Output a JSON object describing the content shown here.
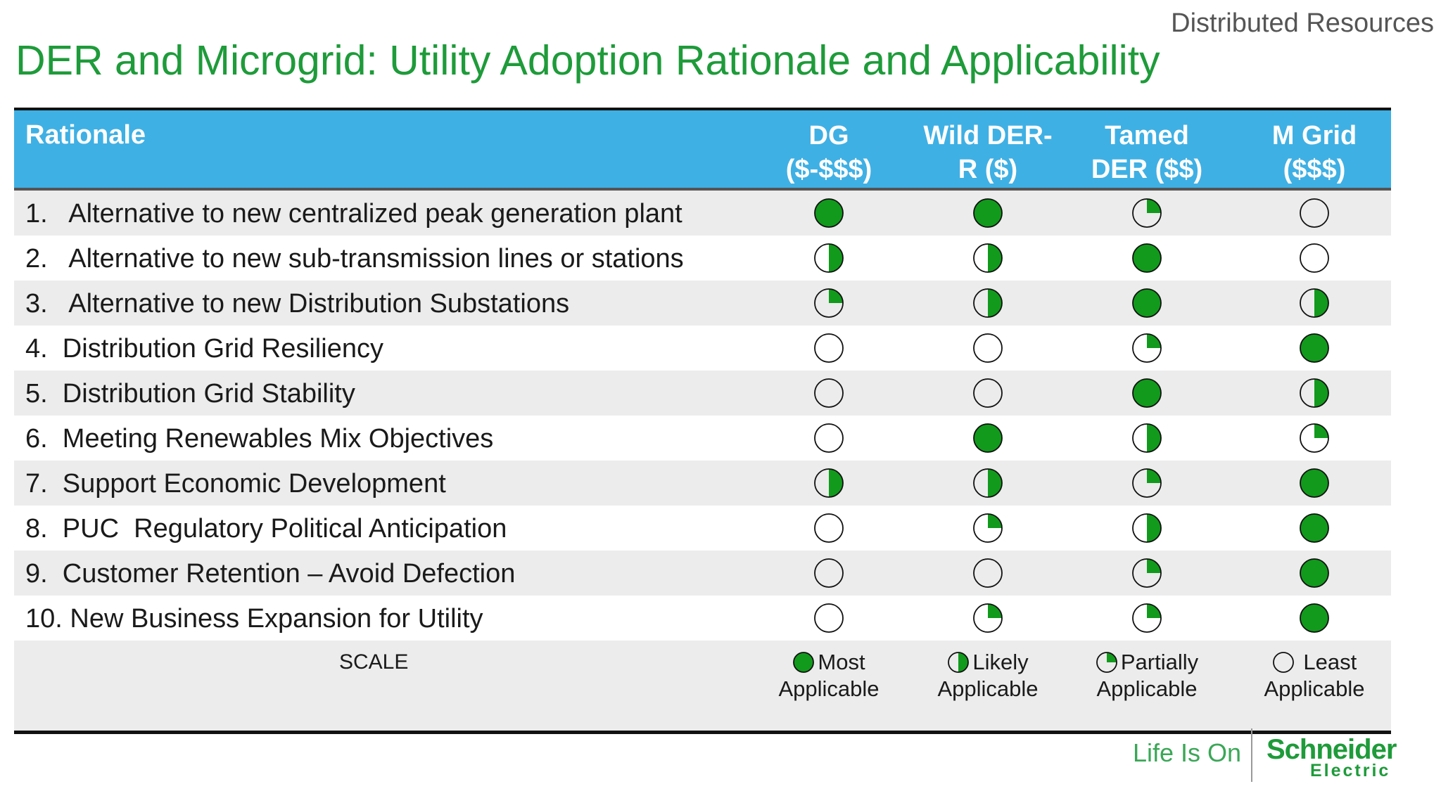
{
  "header": {
    "section": "Distributed Resources"
  },
  "title": "DER and Microgrid:  Utility Adoption Rationale and Applicability",
  "colors": {
    "green": "#119a1c",
    "header_blue": "#3fb0e4",
    "title_green": "#1e9b3a"
  },
  "table": {
    "rationale_header": "Rationale",
    "columns": [
      {
        "line1": "DG",
        "line2": "($-$$$)"
      },
      {
        "line1": "Wild DER-",
        "line2": "R ($)"
      },
      {
        "line1": "Tamed",
        "line2": "DER ($$)"
      },
      {
        "line1": "M Grid",
        "line2": "($$$)"
      }
    ],
    "rows": [
      {
        "label": "1.   Alternative to new centralized peak generation plant",
        "ratings": [
          1,
          1,
          0.25,
          0
        ]
      },
      {
        "label": "2.   Alternative to new sub-transmission lines or stations",
        "ratings": [
          0.5,
          0.5,
          1,
          0
        ]
      },
      {
        "label": "3.   Alternative to new Distribution Substations",
        "ratings": [
          0.25,
          0.5,
          1,
          0.5
        ]
      },
      {
        "label": "4.  Distribution Grid Resiliency",
        "ratings": [
          0,
          0,
          0.25,
          1
        ]
      },
      {
        "label": "5.  Distribution Grid Stability",
        "ratings": [
          0,
          0,
          1,
          0.5
        ]
      },
      {
        "label": "6.  Meeting Renewables Mix Objectives",
        "ratings": [
          0,
          1,
          0.5,
          0.25
        ]
      },
      {
        "label": "7.  Support Economic Development",
        "ratings": [
          0.5,
          0.5,
          0.25,
          1
        ]
      },
      {
        "label": "8.  PUC  Regulatory Political Anticipation",
        "ratings": [
          0,
          0.25,
          0.5,
          1
        ]
      },
      {
        "label": "9.  Customer Retention – Avoid Defection",
        "ratings": [
          0,
          0,
          0.25,
          1
        ]
      },
      {
        "label": "10. New Business Expansion for Utility",
        "ratings": [
          0,
          0.25,
          0.25,
          1
        ]
      }
    ]
  },
  "scale": {
    "label": "SCALE",
    "items": [
      {
        "level": 1,
        "line1": "Most",
        "line2": "Applicable"
      },
      {
        "level": 0.5,
        "line1": "Likely",
        "line2": "Applicable"
      },
      {
        "level": 0.25,
        "line1": "Partially",
        "line2": "Applicable"
      },
      {
        "level": 0,
        "line1": " Least",
        "line2": "Applicable"
      }
    ]
  },
  "footer": {
    "tagline": "Life Is On",
    "brand": "Schneider",
    "brand_sub": "Electric"
  }
}
